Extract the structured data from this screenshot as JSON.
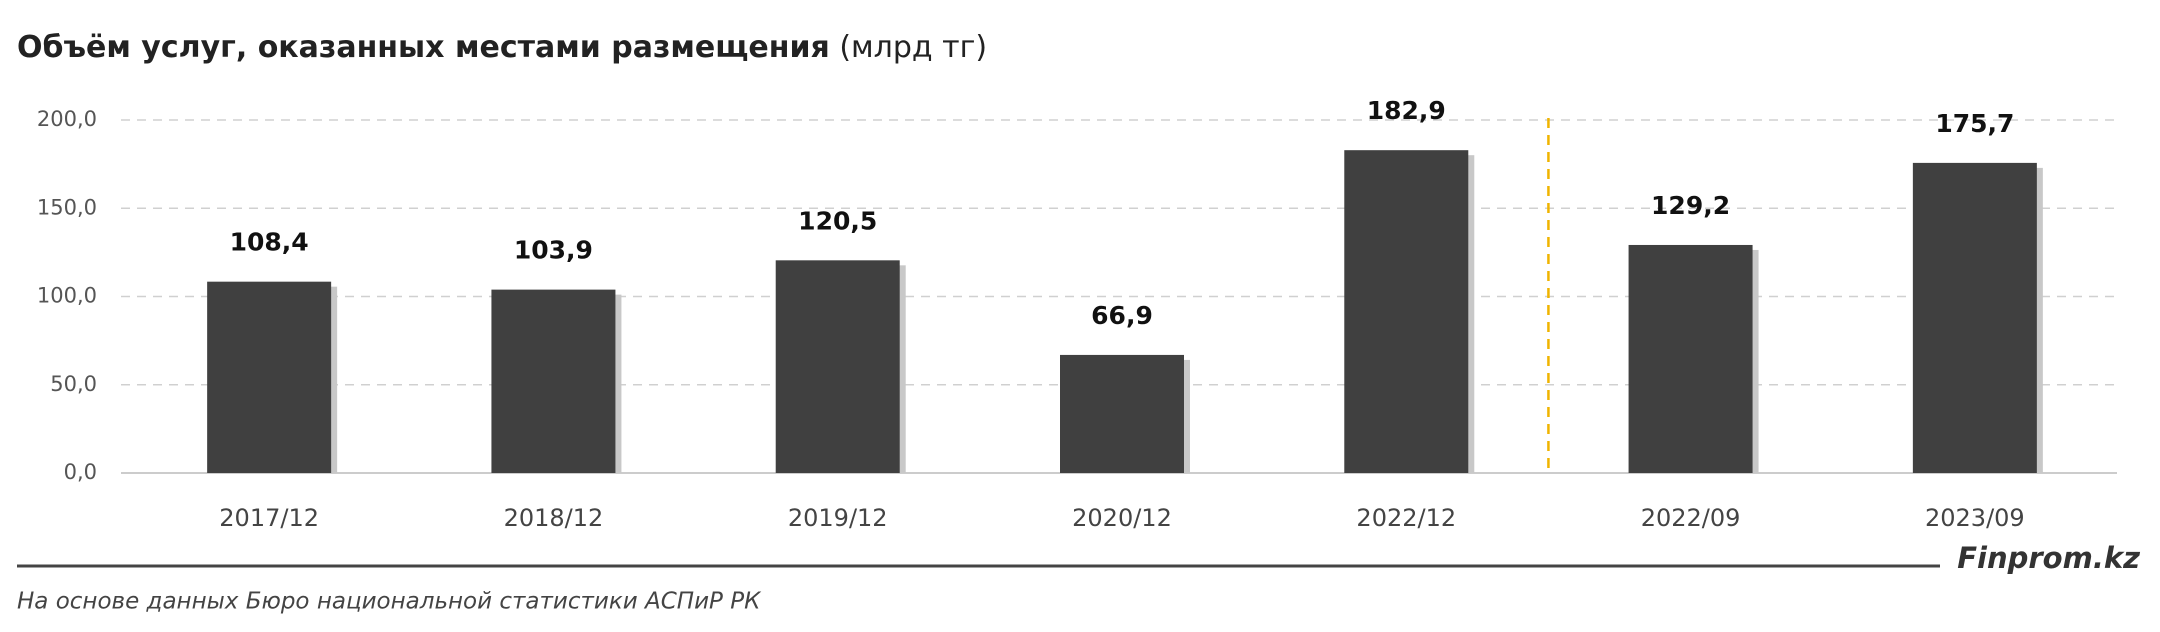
{
  "chart_data": {
    "type": "bar",
    "title": "Объём услуг, оказанных местами размещения",
    "unit": "(млрд тг)",
    "categories": [
      "2017/12",
      "2018/12",
      "2019/12",
      "2020/12",
      "2022/12",
      "2022/09",
      "2023/09"
    ],
    "values": [
      108.4,
      103.9,
      120.5,
      66.9,
      182.9,
      129.2,
      175.7
    ],
    "value_labels": [
      "108,4",
      "103,9",
      "120,5",
      "66,9",
      "182,9",
      "129,2",
      "175,7"
    ],
    "color": "#404040",
    "ylim": [
      0,
      200
    ],
    "yticks": [
      {
        "value": 0,
        "label": "0,0"
      },
      {
        "value": 50,
        "label": "50,0"
      },
      {
        "value": 100,
        "label": "100,0"
      },
      {
        "value": 150,
        "label": "150,0"
      },
      {
        "value": 200,
        "label": "200,0"
      }
    ],
    "grid": true,
    "brand": "Finprom.kz",
    "source": "На основе данных Бюро национальной статистики АСПиР РК"
  }
}
